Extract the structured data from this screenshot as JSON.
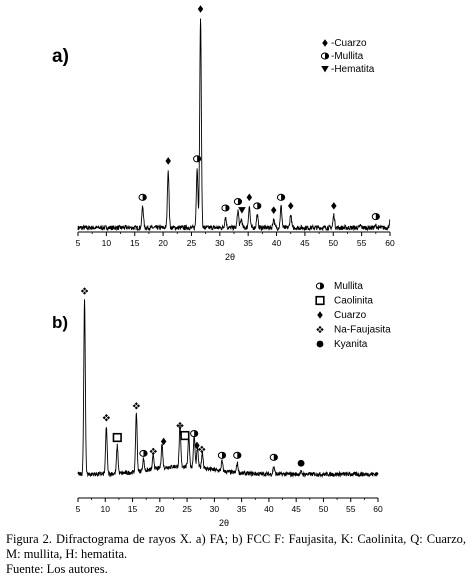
{
  "chart_data": [
    {
      "type": "line",
      "panel_label": "a)",
      "xlabel": "2θ",
      "xlim": [
        5,
        60
      ],
      "xticks": [
        5,
        10,
        15,
        20,
        25,
        30,
        35,
        40,
        45,
        50,
        55,
        60
      ],
      "legend": [
        {
          "symbol": "diamond",
          "label": "-Cuarzo"
        },
        {
          "symbol": "circle-open",
          "label": "-Mullita"
        },
        {
          "symbol": "triangle-down",
          "label": "-Hematita"
        }
      ],
      "legend_position": "top-right",
      "baseline": 2,
      "peaks": [
        {
          "x": 16.4,
          "y": 12
        },
        {
          "x": 20.9,
          "y": 29
        },
        {
          "x": 26.0,
          "y": 30
        },
        {
          "x": 26.6,
          "y": 100
        },
        {
          "x": 31.0,
          "y": 7
        },
        {
          "x": 33.2,
          "y": 10
        },
        {
          "x": 33.8,
          "y": 6
        },
        {
          "x": 35.2,
          "y": 12
        },
        {
          "x": 36.6,
          "y": 8
        },
        {
          "x": 39.5,
          "y": 6
        },
        {
          "x": 40.8,
          "y": 12
        },
        {
          "x": 42.5,
          "y": 8
        },
        {
          "x": 50.1,
          "y": 8
        },
        {
          "x": 54.8,
          "y": 3
        },
        {
          "x": 57.5,
          "y": 3
        },
        {
          "x": 60.0,
          "y": 5
        }
      ],
      "markers": [
        {
          "x": 16.4,
          "y": 12,
          "symbol": "circle-open"
        },
        {
          "x": 20.9,
          "y": 29,
          "symbol": "diamond"
        },
        {
          "x": 26.0,
          "y": 30,
          "symbol": "circle-open"
        },
        {
          "x": 26.6,
          "y": 100,
          "symbol": "diamond"
        },
        {
          "x": 31.0,
          "y": 7,
          "symbol": "circle-open"
        },
        {
          "x": 33.2,
          "y": 10,
          "symbol": "circle-open"
        },
        {
          "x": 33.9,
          "y": 6,
          "symbol": "triangle-down"
        },
        {
          "x": 35.2,
          "y": 12,
          "symbol": "diamond"
        },
        {
          "x": 36.6,
          "y": 8,
          "symbol": "circle-open"
        },
        {
          "x": 39.5,
          "y": 6,
          "symbol": "diamond"
        },
        {
          "x": 40.8,
          "y": 12,
          "symbol": "circle-open"
        },
        {
          "x": 42.5,
          "y": 8,
          "symbol": "diamond"
        },
        {
          "x": 50.1,
          "y": 8,
          "symbol": "diamond"
        },
        {
          "x": 57.5,
          "y": 3,
          "symbol": "circle-open"
        }
      ]
    },
    {
      "type": "line",
      "panel_label": "b)",
      "xlabel": "2θ",
      "xlim": [
        5,
        60
      ],
      "xticks": [
        5,
        10,
        15,
        20,
        25,
        30,
        35,
        40,
        45,
        50,
        55,
        60
      ],
      "legend": [
        {
          "symbol": "circle-open",
          "label": "Mullita"
        },
        {
          "symbol": "square-open",
          "label": "Caolinita"
        },
        {
          "symbol": "diamond",
          "label": "Cuarzo"
        },
        {
          "symbol": "quad-diamond",
          "label": "Na-Faujasita"
        },
        {
          "symbol": "circle-filled",
          "label": "Kyanita"
        }
      ],
      "legend_position": "top-right",
      "baseline": 12,
      "peaks": [
        {
          "x": 6.2,
          "y": 100
        },
        {
          "x": 10.2,
          "y": 36
        },
        {
          "x": 12.2,
          "y": 26
        },
        {
          "x": 15.7,
          "y": 42
        },
        {
          "x": 17.0,
          "y": 18
        },
        {
          "x": 18.8,
          "y": 19
        },
        {
          "x": 20.4,
          "y": 24
        },
        {
          "x": 23.7,
          "y": 32
        },
        {
          "x": 25.3,
          "y": 28
        },
        {
          "x": 26.3,
          "y": 28
        },
        {
          "x": 26.9,
          "y": 22
        },
        {
          "x": 27.8,
          "y": 20
        },
        {
          "x": 31.4,
          "y": 17
        },
        {
          "x": 34.2,
          "y": 17
        },
        {
          "x": 40.9,
          "y": 16
        },
        {
          "x": 45.9,
          "y": 13
        }
      ],
      "markers": [
        {
          "x": 6.2,
          "y": 100,
          "symbol": "quad-diamond"
        },
        {
          "x": 10.2,
          "y": 36,
          "symbol": "quad-diamond"
        },
        {
          "x": 12.2,
          "y": 26,
          "symbol": "square-open"
        },
        {
          "x": 15.7,
          "y": 42,
          "symbol": "quad-diamond"
        },
        {
          "x": 17.0,
          "y": 18,
          "symbol": "circle-open"
        },
        {
          "x": 18.8,
          "y": 19,
          "symbol": "quad-diamond"
        },
        {
          "x": 20.7,
          "y": 24,
          "symbol": "diamond"
        },
        {
          "x": 23.7,
          "y": 32,
          "symbol": "quad-diamond"
        },
        {
          "x": 24.6,
          "y": 27,
          "symbol": "square-open"
        },
        {
          "x": 26.3,
          "y": 28,
          "symbol": "circle-open"
        },
        {
          "x": 26.8,
          "y": 22,
          "symbol": "diamond"
        },
        {
          "x": 27.7,
          "y": 20,
          "symbol": "quad-diamond"
        },
        {
          "x": 31.4,
          "y": 17,
          "symbol": "circle-open"
        },
        {
          "x": 34.2,
          "y": 17,
          "symbol": "circle-open"
        },
        {
          "x": 40.9,
          "y": 16,
          "symbol": "circle-open"
        },
        {
          "x": 45.9,
          "y": 13,
          "symbol": "circle-filled"
        }
      ]
    }
  ],
  "caption": {
    "text": "Figura 2. Difractograma de rayos X. a) FA; b) FCC F: Faujasita, K: Caolinita, Q: Cuarzo, M: mullita, H: hematita.",
    "source": "Fuente: Los autores."
  }
}
